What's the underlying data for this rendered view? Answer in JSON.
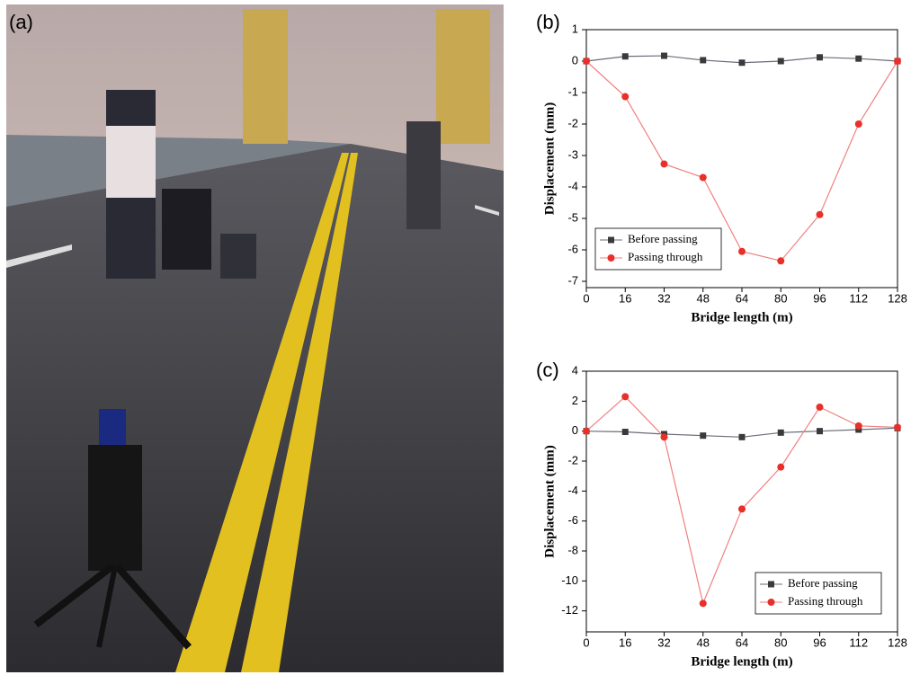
{
  "photo_label": "(a)",
  "chart_data": [
    {
      "type": "line",
      "title": "(b)",
      "x_label": "Bridge length (m)",
      "y_label": "Displacement (mm)",
      "x": [
        0,
        16,
        32,
        48,
        64,
        80,
        96,
        112,
        128
      ],
      "series": [
        {
          "name": "Before passing",
          "color": "#3a3a3a",
          "line_color": "#6b6b7a",
          "marker": "square",
          "values": [
            0,
            0.15,
            0.17,
            0.03,
            -0.05,
            0.0,
            0.12,
            0.08,
            0
          ]
        },
        {
          "name": "Passing through",
          "color": "#e8302a",
          "line_color": "#f08080",
          "marker": "circle",
          "values": [
            0,
            -1.13,
            -3.27,
            -3.7,
            -6.05,
            -6.35,
            -4.88,
            -2.0,
            0
          ]
        }
      ],
      "xlim": [
        0,
        128
      ],
      "xticks": [
        0,
        16,
        32,
        48,
        64,
        80,
        96,
        112,
        128
      ],
      "ylim": [
        -7.2,
        1
      ],
      "yticks": [
        -7,
        -6,
        -5,
        -4,
        -3,
        -2,
        -1,
        0,
        1
      ],
      "legend": "lower left"
    },
    {
      "type": "line",
      "title": "(c)",
      "x_label": "Bridge length (m)",
      "y_label": "Displacement (mm)",
      "x": [
        0,
        16,
        32,
        48,
        64,
        80,
        96,
        112,
        128
      ],
      "series": [
        {
          "name": "Before passing",
          "color": "#3a3a3a",
          "line_color": "#6b6b7a",
          "marker": "square",
          "values": [
            0,
            -0.05,
            -0.2,
            -0.3,
            -0.4,
            -0.1,
            0.0,
            0.1,
            0.2
          ]
        },
        {
          "name": "Passing through",
          "color": "#e8302a",
          "line_color": "#f08080",
          "marker": "circle",
          "values": [
            0,
            2.3,
            -0.4,
            -11.5,
            -5.2,
            -2.4,
            1.6,
            0.35,
            0.25
          ]
        }
      ],
      "xlim": [
        0,
        128
      ],
      "xticks": [
        0,
        16,
        32,
        48,
        64,
        80,
        96,
        112,
        128
      ],
      "ylim": [
        -13.4,
        4
      ],
      "yticks": [
        -12,
        -10,
        -8,
        -6,
        -4,
        -2,
        0,
        2,
        4
      ],
      "legend": "lower right"
    }
  ]
}
